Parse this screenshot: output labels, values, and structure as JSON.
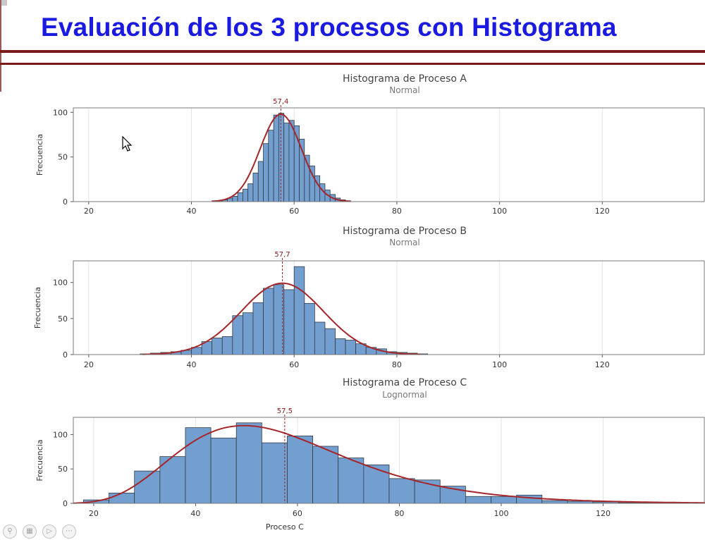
{
  "slide": {
    "title": "Evaluación de los 3 procesos con Histograma"
  },
  "toolbar": {
    "icons": [
      "zoom-icon",
      "slides-icon",
      "video-icon",
      "more-icon"
    ]
  },
  "colors": {
    "bar": "#729fcf",
    "fit_line": "#a5262a",
    "title": "#1a1ae0",
    "rule": "#7a1a1a"
  },
  "chart_data": [
    {
      "type": "bar",
      "title": "Histograma de Proceso A",
      "subtitle": "Normal",
      "xlabel": "",
      "ylabel": "Frecuencia",
      "xlim": [
        17,
        140
      ],
      "ylim": [
        0,
        105
      ],
      "xticks": [
        20,
        40,
        60,
        80,
        100,
        120
      ],
      "yticks": [
        0,
        50,
        100
      ],
      "bin_edges": [
        44,
        45,
        46,
        47,
        48,
        49,
        50,
        51,
        52,
        53,
        54,
        55,
        56,
        57,
        58,
        59,
        60,
        61,
        62,
        63,
        64,
        65,
        66,
        67,
        68,
        69,
        70,
        71
      ],
      "values": [
        1,
        1,
        2,
        4,
        6,
        10,
        14,
        20,
        32,
        45,
        65,
        80,
        97,
        99,
        88,
        91,
        85,
        70,
        52,
        40,
        29,
        20,
        13,
        8,
        4,
        2,
        1
      ],
      "mean_label": "57,4",
      "fit": {
        "distribution": "normal",
        "mean": 57.4,
        "peak": 98,
        "sd": 4.0
      },
      "grid": true
    },
    {
      "type": "bar",
      "title": "Histograma de Proceso B",
      "subtitle": "Normal",
      "xlabel": "",
      "ylabel": "Frecuencia",
      "xlim": [
        17,
        140
      ],
      "ylim": [
        0,
        130
      ],
      "xticks": [
        20,
        40,
        60,
        80,
        100,
        120
      ],
      "yticks": [
        0,
        50,
        100
      ],
      "bin_edges": [
        30,
        32,
        34,
        36,
        38,
        40,
        42,
        44,
        46,
        48,
        50,
        52,
        54,
        56,
        58,
        60,
        62,
        64,
        66,
        68,
        70,
        72,
        74,
        76,
        78,
        80,
        82,
        84,
        86
      ],
      "values": [
        1,
        2,
        3,
        4,
        6,
        10,
        18,
        23,
        25,
        54,
        58,
        72,
        92,
        97,
        90,
        122,
        71,
        45,
        36,
        22,
        20,
        15,
        10,
        8,
        4,
        3,
        2,
        1
      ],
      "mean_label": "57,7",
      "fit": {
        "distribution": "normal",
        "mean": 57.7,
        "peak": 99,
        "sd": 8.0
      },
      "grid": true
    },
    {
      "type": "bar",
      "title": "Histograma de Proceso C",
      "subtitle": "Lognormal",
      "xlabel": "Proceso C",
      "ylabel": "Frecuencia",
      "xlim": [
        16,
        140
      ],
      "ylim": [
        0,
        125
      ],
      "xticks": [
        20,
        40,
        60,
        80,
        100,
        120
      ],
      "yticks": [
        0,
        50,
        100
      ],
      "bin_edges": [
        18,
        23,
        28,
        33,
        38,
        43,
        48,
        53,
        58,
        63,
        68,
        73,
        78,
        83,
        88,
        93,
        98,
        103,
        108,
        113,
        118,
        123,
        128,
        133
      ],
      "values": [
        5,
        15,
        47,
        68,
        110,
        95,
        117,
        88,
        98,
        83,
        66,
        56,
        36,
        34,
        25,
        10,
        10,
        12,
        4,
        3,
        2,
        1,
        1
      ],
      "mean_label": "57,5",
      "fit": {
        "distribution": "lognormal",
        "mode": 49.5,
        "peak": 113,
        "sigma": 0.33
      },
      "grid": true
    }
  ]
}
